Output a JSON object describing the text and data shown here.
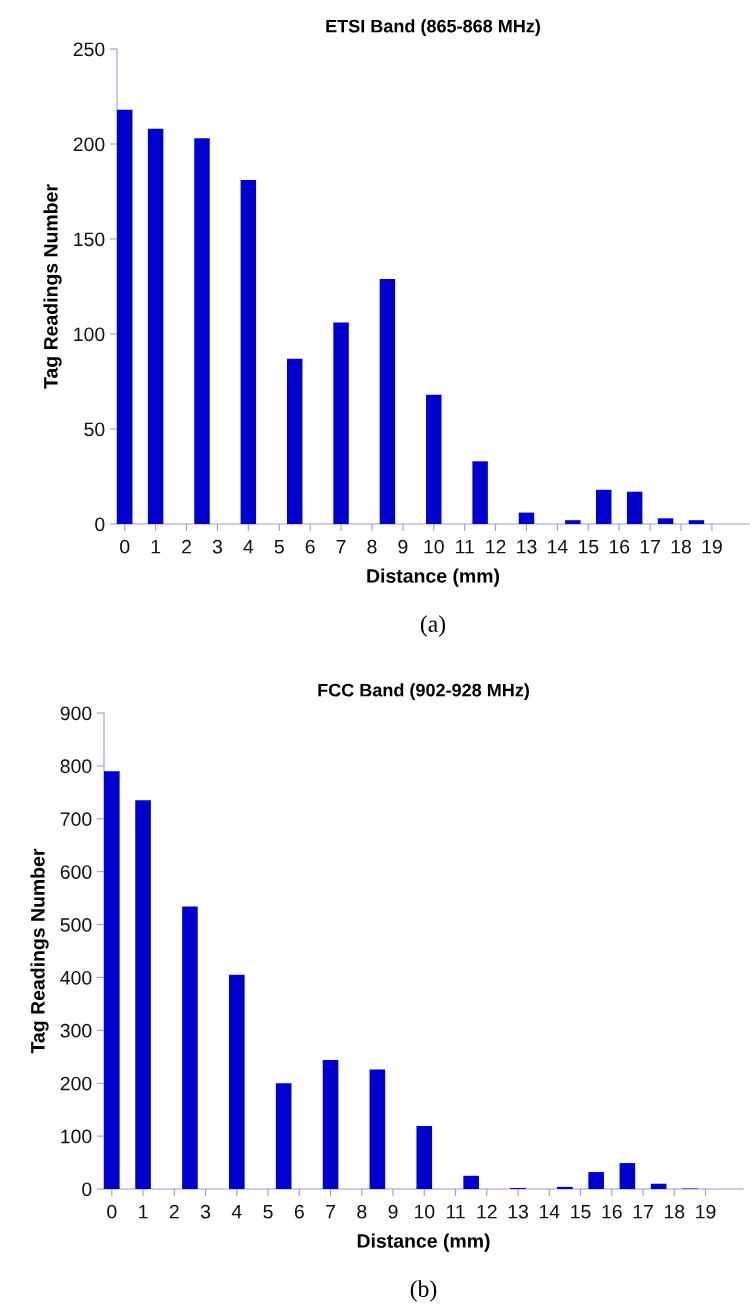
{
  "chart_data": [
    {
      "type": "bar",
      "title": "ETSI Band (865-868 MHz)",
      "xlabel": "Distance (mm)",
      "ylabel": "Tag Readings Number",
      "annotations": [
        "(a)"
      ],
      "x": [
        0,
        1,
        2.5,
        4,
        5.5,
        7,
        8.5,
        10,
        11.5,
        13,
        14.5,
        15.5,
        16.5,
        17.5,
        18.5
      ],
      "values": [
        218,
        208,
        203,
        181,
        87,
        106,
        129,
        68,
        33,
        6,
        2,
        18,
        17,
        3,
        2
      ],
      "color": "#0000cc",
      "xlim": [
        -0.25,
        20.2
      ],
      "xticks": [
        0,
        1,
        2,
        3,
        4,
        5,
        6,
        7,
        8,
        9,
        10,
        11,
        12,
        13,
        14,
        15,
        16,
        17,
        18,
        19
      ],
      "ylim": [
        0,
        250
      ],
      "yticks": [
        0,
        50,
        100,
        150,
        200,
        250
      ],
      "grid": false
    },
    {
      "type": "bar",
      "title": "FCC Band (902-928 MHz)",
      "xlabel": "Distance (mm)",
      "ylabel": "Tag Readings Number",
      "annotations": [
        "(b)"
      ],
      "x": [
        0,
        1,
        2.5,
        4,
        5.5,
        7,
        8.5,
        10,
        11.5,
        13,
        14.5,
        15.5,
        16.5,
        17.5,
        18.5
      ],
      "values": [
        790,
        735,
        534,
        405,
        200,
        244,
        226,
        119,
        25,
        2,
        4,
        32,
        49,
        10,
        1
      ],
      "color": "#0000cc",
      "xlim": [
        -0.25,
        20.2
      ],
      "xticks": [
        0,
        1,
        2,
        3,
        4,
        5,
        6,
        7,
        8,
        9,
        10,
        11,
        12,
        13,
        14,
        15,
        16,
        17,
        18,
        19
      ],
      "ylim": [
        0,
        900
      ],
      "yticks": [
        0,
        100,
        200,
        300,
        400,
        500,
        600,
        700,
        800,
        900
      ],
      "grid": false
    }
  ]
}
